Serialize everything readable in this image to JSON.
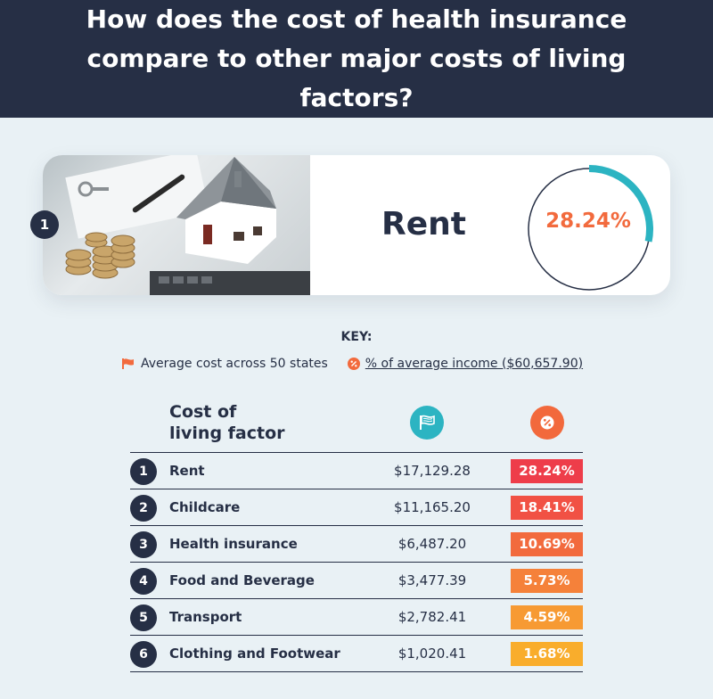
{
  "title": "How does the cost of health insurance compare to other major costs of living factors?",
  "hero": {
    "rank": "1",
    "label": "Rent",
    "percent_text": "28.24%",
    "percent_value": 28.24,
    "image_alt": "house model with coins, keys and pen"
  },
  "key": {
    "title": "KEY:",
    "cost_label": "Average cost across 50 states",
    "income_label": "% of average income ($60,657.90)"
  },
  "table": {
    "header": "Cost of living factor",
    "header_line1": "Cost of",
    "header_line2": "living factor",
    "cost_icon": "flag-icon",
    "percent_icon": "percent-icon",
    "rows": [
      {
        "rank": "1",
        "label": "Rent",
        "cost": "$17,129.28",
        "percent": "28.24%",
        "color": "#ee3d4a"
      },
      {
        "rank": "2",
        "label": "Childcare",
        "cost": "$11,165.20",
        "percent": "18.41%",
        "color": "#f15144"
      },
      {
        "rank": "3",
        "label": "Health insurance",
        "cost": "$6,487.20",
        "percent": "10.69%",
        "color": "#f26a3d"
      },
      {
        "rank": "4",
        "label": "Food and Beverage",
        "cost": "$3,477.39",
        "percent": "5.73%",
        "color": "#f5813a"
      },
      {
        "rank": "5",
        "label": "Transport",
        "cost": "$2,782.41",
        "percent": "4.59%",
        "color": "#f79a33"
      },
      {
        "rank": "6",
        "label": "Clothing and Footwear",
        "cost": "$1,020.41",
        "percent": "1.68%",
        "color": "#f9ad2c"
      }
    ]
  },
  "colors": {
    "navy": "#262f45",
    "teal": "#2cb4c2",
    "orange": "#f26a3d",
    "background": "#e9f1f5"
  }
}
